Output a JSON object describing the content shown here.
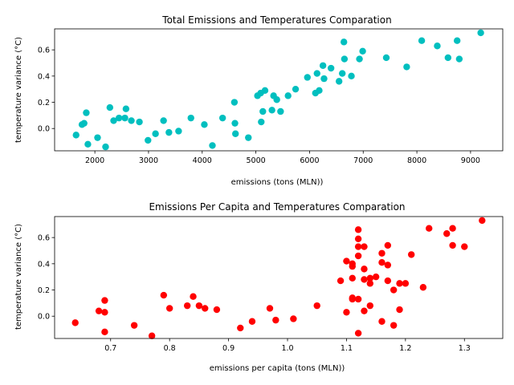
{
  "chart_data": [
    {
      "type": "scatter",
      "title": "Total Emissions and Temperatures Comparation",
      "xlabel": "emissions (tons (MLN))",
      "ylabel": "temperature variance (°C)",
      "xlim": [
        1250,
        9600
      ],
      "ylim": [
        -0.17,
        0.76
      ],
      "xticks": [
        2000,
        3000,
        4000,
        5000,
        6000,
        7000,
        8000,
        9000
      ],
      "yticks": [
        0.0,
        0.2,
        0.4,
        0.6
      ],
      "xtick_labels": [
        "2000",
        "3000",
        "4000",
        "5000",
        "6000",
        "7000",
        "8000",
        "9000"
      ],
      "ytick_labels": [
        "0.0",
        "0.2",
        "0.4",
        "0.6"
      ],
      "grid": false,
      "color": "#00bfbf",
      "points": [
        [
          1650,
          -0.05
        ],
        [
          1760,
          0.03
        ],
        [
          1800,
          0.04
        ],
        [
          1840,
          0.12
        ],
        [
          1870,
          -0.12
        ],
        [
          2050,
          -0.07
        ],
        [
          2200,
          -0.14
        ],
        [
          2280,
          0.16
        ],
        [
          2350,
          0.06
        ],
        [
          2450,
          0.08
        ],
        [
          2560,
          0.08
        ],
        [
          2580,
          0.15
        ],
        [
          2680,
          0.06
        ],
        [
          2830,
          0.05
        ],
        [
          2990,
          -0.09
        ],
        [
          3130,
          -0.04
        ],
        [
          3280,
          0.06
        ],
        [
          3380,
          -0.03
        ],
        [
          3560,
          -0.02
        ],
        [
          3790,
          0.08
        ],
        [
          4040,
          0.03
        ],
        [
          4190,
          -0.13
        ],
        [
          4380,
          0.08
        ],
        [
          4600,
          0.2
        ],
        [
          4610,
          0.04
        ],
        [
          4620,
          -0.04
        ],
        [
          4860,
          -0.07
        ],
        [
          5030,
          0.25
        ],
        [
          5090,
          0.27
        ],
        [
          5100,
          0.05
        ],
        [
          5130,
          0.13
        ],
        [
          5170,
          0.29
        ],
        [
          5300,
          0.14
        ],
        [
          5330,
          0.25
        ],
        [
          5390,
          0.22
        ],
        [
          5460,
          0.13
        ],
        [
          5600,
          0.25
        ],
        [
          5740,
          0.3
        ],
        [
          5960,
          0.39
        ],
        [
          6110,
          0.27
        ],
        [
          6140,
          0.42
        ],
        [
          6180,
          0.29
        ],
        [
          6250,
          0.48
        ],
        [
          6270,
          0.38
        ],
        [
          6400,
          0.46
        ],
        [
          6550,
          0.36
        ],
        [
          6610,
          0.42
        ],
        [
          6640,
          0.66
        ],
        [
          6650,
          0.53
        ],
        [
          6780,
          0.4
        ],
        [
          6930,
          0.53
        ],
        [
          6990,
          0.59
        ],
        [
          7430,
          0.54
        ],
        [
          7810,
          0.47
        ],
        [
          8090,
          0.67
        ],
        [
          8380,
          0.63
        ],
        [
          8580,
          0.54
        ],
        [
          8750,
          0.67
        ],
        [
          8790,
          0.53
        ],
        [
          9190,
          0.73
        ]
      ]
    },
    {
      "type": "scatter",
      "title": "Emissions Per Capita and Temperatures Comparation",
      "xlabel": "emissions per capita (tons (MLN))",
      "ylabel": "temperature variance (°C)",
      "xlim": [
        0.605,
        1.365
      ],
      "ylim": [
        -0.17,
        0.76
      ],
      "xticks": [
        0.7,
        0.8,
        0.9,
        1.0,
        1.1,
        1.2,
        1.3
      ],
      "yticks": [
        0.0,
        0.2,
        0.4,
        0.6
      ],
      "xtick_labels": [
        "0.7",
        "0.8",
        "0.9",
        "1.0",
        "1.1",
        "1.2",
        "1.3"
      ],
      "ytick_labels": [
        "0.0",
        "0.2",
        "0.4",
        "0.6"
      ],
      "grid": false,
      "color": "#ff0000",
      "points": [
        [
          0.64,
          -0.05
        ],
        [
          0.68,
          0.04
        ],
        [
          0.69,
          0.12
        ],
        [
          0.69,
          0.03
        ],
        [
          0.69,
          -0.12
        ],
        [
          0.74,
          -0.07
        ],
        [
          0.77,
          -0.15
        ],
        [
          0.79,
          0.16
        ],
        [
          0.8,
          0.06
        ],
        [
          0.83,
          0.08
        ],
        [
          0.84,
          0.15
        ],
        [
          0.85,
          0.08
        ],
        [
          0.86,
          0.06
        ],
        [
          0.88,
          0.05
        ],
        [
          0.92,
          -0.09
        ],
        [
          0.94,
          -0.04
        ],
        [
          0.97,
          0.06
        ],
        [
          0.98,
          -0.03
        ],
        [
          1.01,
          -0.02
        ],
        [
          1.05,
          0.08
        ],
        [
          1.09,
          0.27
        ],
        [
          1.1,
          0.42
        ],
        [
          1.1,
          0.03
        ],
        [
          1.11,
          0.4
        ],
        [
          1.11,
          0.38
        ],
        [
          1.11,
          0.29
        ],
        [
          1.11,
          0.14
        ],
        [
          1.11,
          0.13
        ],
        [
          1.12,
          0.66
        ],
        [
          1.12,
          0.59
        ],
        [
          1.12,
          0.53
        ],
        [
          1.12,
          0.46
        ],
        [
          1.12,
          0.13
        ],
        [
          1.12,
          -0.13
        ],
        [
          1.13,
          0.53
        ],
        [
          1.13,
          0.36
        ],
        [
          1.13,
          0.28
        ],
        [
          1.13,
          0.04
        ],
        [
          1.14,
          0.29
        ],
        [
          1.14,
          0.25
        ],
        [
          1.14,
          0.08
        ],
        [
          1.15,
          0.3
        ],
        [
          1.16,
          0.48
        ],
        [
          1.16,
          0.41
        ],
        [
          1.16,
          -0.04
        ],
        [
          1.17,
          0.54
        ],
        [
          1.17,
          0.39
        ],
        [
          1.17,
          0.27
        ],
        [
          1.18,
          0.2
        ],
        [
          1.18,
          -0.07
        ],
        [
          1.19,
          0.25
        ],
        [
          1.19,
          0.05
        ],
        [
          1.2,
          0.25
        ],
        [
          1.21,
          0.47
        ],
        [
          1.23,
          0.22
        ],
        [
          1.24,
          0.67
        ],
        [
          1.27,
          0.63
        ],
        [
          1.28,
          0.67
        ],
        [
          1.28,
          0.54
        ],
        [
          1.3,
          0.53
        ],
        [
          1.33,
          0.73
        ]
      ]
    }
  ]
}
